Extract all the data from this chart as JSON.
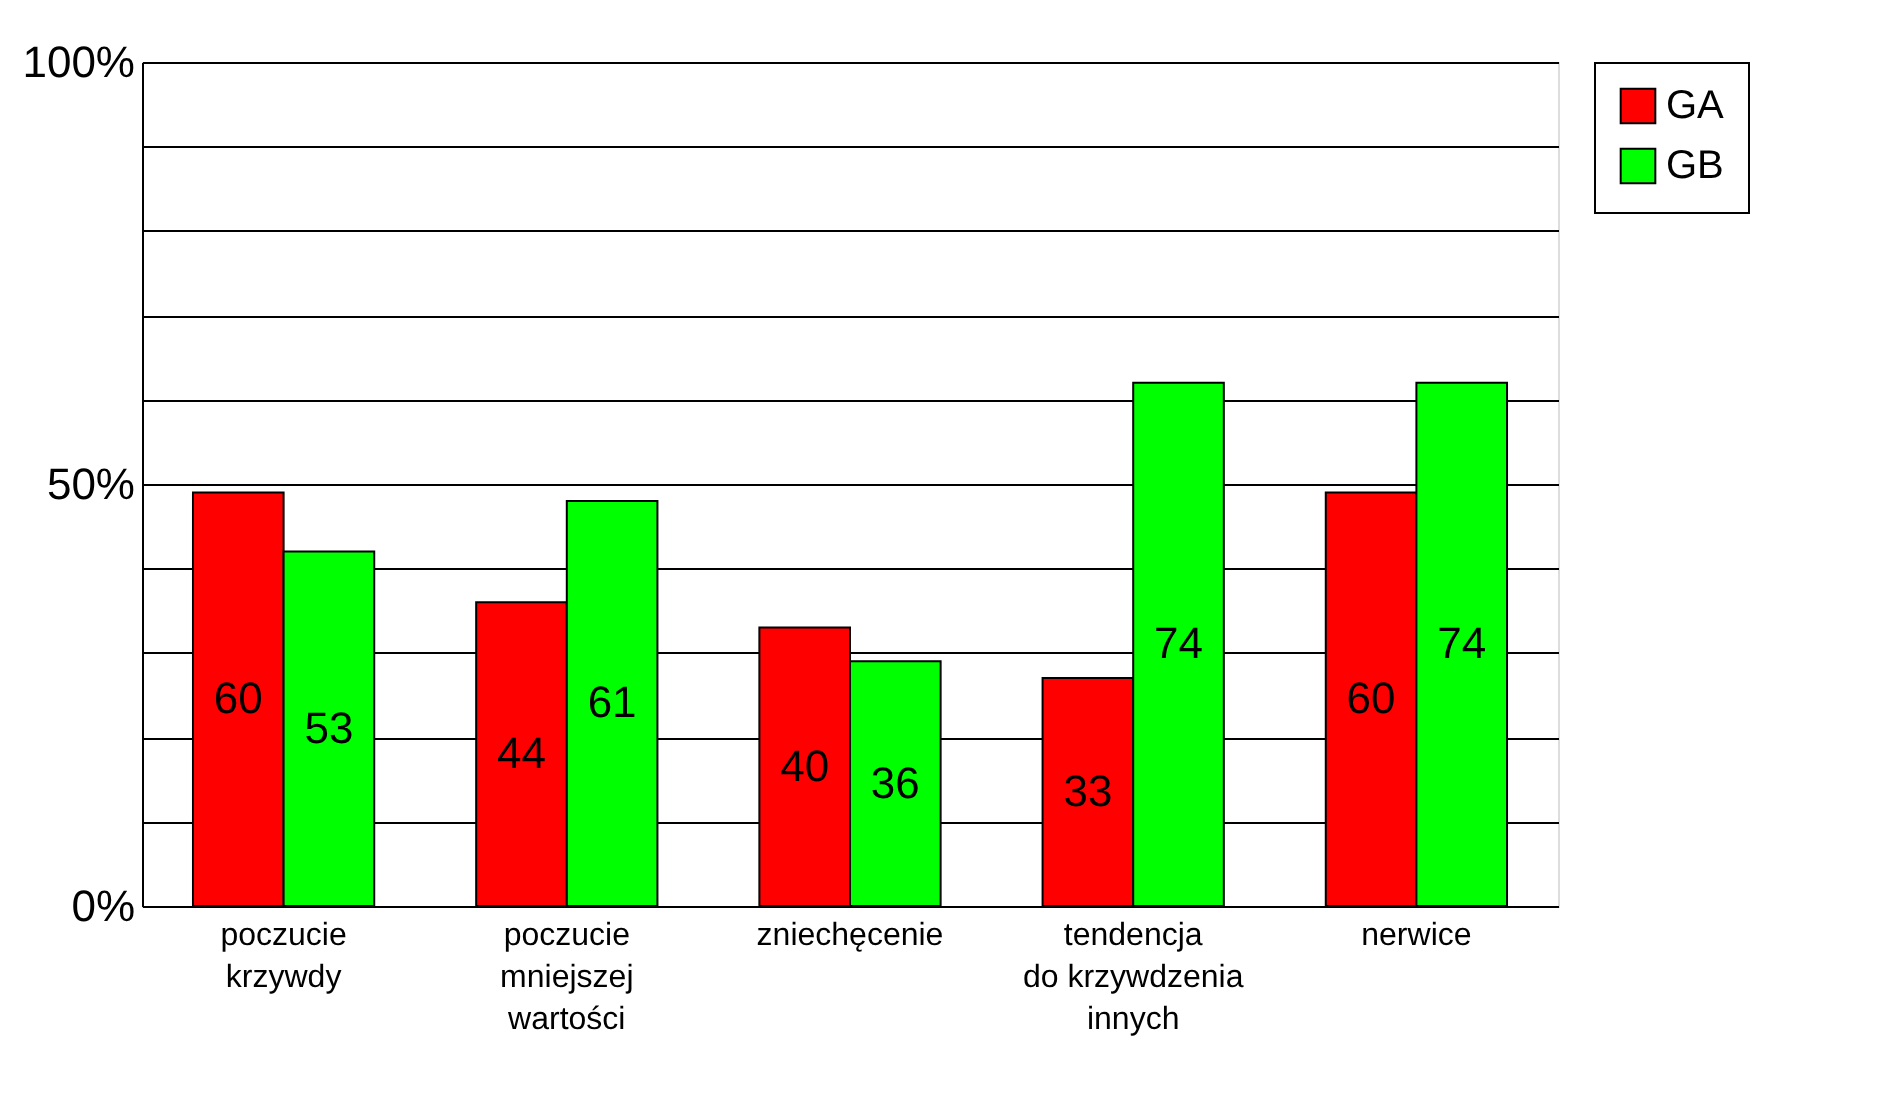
{
  "chart_data": {
    "type": "bar",
    "categories": [
      "poczucie\nkrzywdy",
      "poczucie\nmniejszej\nwartości",
      "zniechęcenie",
      "tendencja\ndo krzywdzenia\ninnych",
      "nerwice"
    ],
    "series": [
      {
        "name": "GA",
        "color": "#ff0000",
        "values": [
          49,
          36,
          33,
          27,
          49
        ]
      },
      {
        "name": "GB",
        "color": "#00ff00",
        "values": [
          42,
          48,
          29,
          62,
          62
        ]
      }
    ],
    "annotations": [
      {
        "text": "60",
        "x": "poczucie\nkrzywdy",
        "y": 24.5
      },
      {
        "text": "44",
        "x": "poczucie\nmniejszej\nwartości",
        "y": 18
      },
      {
        "text": "40",
        "x": "zniechęcenie",
        "y": 16.5
      },
      {
        "text": "33",
        "x": "tendencja\ndo krzywdzenia\ninnych",
        "y": 13.5
      },
      {
        "text": "60",
        "x": "nerwice",
        "y": 24.5
      },
      {
        "text": "53",
        "x": "poczucie\nkrzywdy",
        "y": 21
      },
      {
        "text": "61",
        "x": "poczucie\nmniejszej\nwartości",
        "y": 24
      },
      {
        "text": "36",
        "x": "zniechęcenie",
        "y": 14.5
      },
      {
        "text": "74",
        "x": "tendencja\ndo krzywdzenia\ninnych",
        "y": 31
      },
      {
        "text": "74",
        "x": "nerwice",
        "y": 31
      }
    ],
    "ylim": [
      0,
      100
    ],
    "yticks": [
      {
        "value": 0,
        "label": "0%"
      },
      {
        "value": 10,
        "label": null
      },
      {
        "value": 20,
        "label": null
      },
      {
        "value": 30,
        "label": null
      },
      {
        "value": 40,
        "label": null
      },
      {
        "value": 50,
        "label": "50%"
      },
      {
        "value": 60,
        "label": null
      },
      {
        "value": 70,
        "label": null
      },
      {
        "value": 80,
        "label": null
      },
      {
        "value": 90,
        "label": null
      },
      {
        "value": 100,
        "label": "100%"
      }
    ],
    "grid": "y",
    "legend": "right"
  }
}
